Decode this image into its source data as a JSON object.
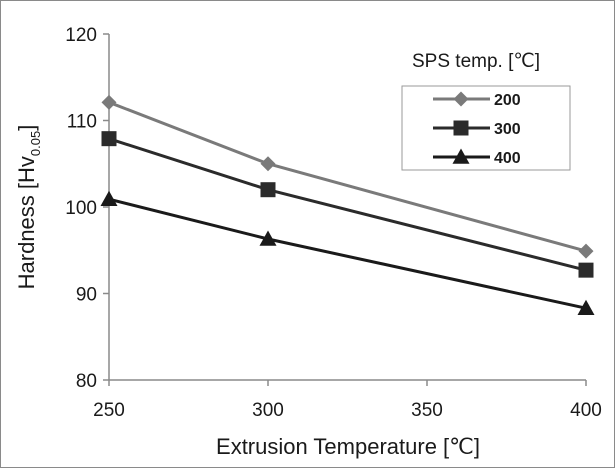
{
  "chart_data": {
    "type": "line",
    "xlabel": "Extrusion Temperature  [℃]",
    "ylabel_main": "Hardness [Hv",
    "ylabel_sub": "0.05",
    "ylabel_close": "]",
    "x_ticks": [
      "250",
      "300",
      "350",
      "400"
    ],
    "y_ticks": [
      "80",
      "90",
      "100",
      "110",
      "120"
    ],
    "xlim": [
      250,
      400
    ],
    "ylim": [
      80,
      120
    ],
    "grid": false,
    "legend_title": "SPS temp. [℃]",
    "legend_position": "top-right",
    "series": [
      {
        "name": "200",
        "marker": "diamond",
        "color": "#7a7a7a",
        "x": [
          250,
          300,
          400
        ],
        "values": [
          112.1,
          105.0,
          94.9
        ]
      },
      {
        "name": "300",
        "marker": "square",
        "color": "#2b2b2b",
        "x": [
          250,
          300,
          400
        ],
        "values": [
          107.9,
          102.0,
          92.7
        ]
      },
      {
        "name": "400",
        "marker": "triangle",
        "color": "#1a1a1a",
        "x": [
          250,
          300,
          400
        ],
        "values": [
          100.9,
          96.3,
          88.3
        ]
      }
    ]
  }
}
